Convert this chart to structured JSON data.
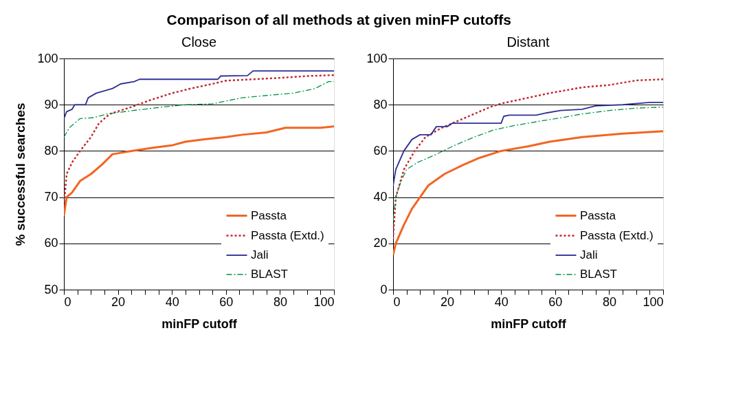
{
  "chart_data": [
    {
      "type": "line",
      "title": "Comparison of all methods at given minFP cutoffs",
      "subtitle": "Close",
      "xlabel": "minFP cutoff",
      "ylabel": "%  successful searches",
      "xlim": [
        0,
        100
      ],
      "ylim": [
        50,
        100
      ],
      "xticks": [
        0,
        {
          "value": 5,
          "label": null
        },
        {
          "value": 10,
          "label": null
        },
        {
          "value": 15,
          "label": null
        },
        20,
        {
          "value": 25,
          "label": null
        },
        {
          "value": 30,
          "label": null
        },
        {
          "value": 35,
          "label": null
        },
        40,
        {
          "value": 45,
          "label": null
        },
        {
          "value": 50,
          "label": null
        },
        {
          "value": 55,
          "label": null
        },
        60,
        {
          "value": 65,
          "label": null
        },
        {
          "value": 70,
          "label": null
        },
        {
          "value": 75,
          "label": null
        },
        80,
        {
          "value": 85,
          "label": null
        },
        {
          "value": 90,
          "label": null
        },
        {
          "value": 95,
          "label": null
        },
        100
      ],
      "yticks": [
        50,
        60,
        70,
        80,
        90,
        100
      ],
      "grid": "y",
      "legend": "bottom right",
      "marker": "none",
      "series": [
        {
          "name": "Passta",
          "color": "#f26522",
          "line_style": "solid",
          "x": [
            0,
            1,
            3,
            6,
            10,
            14,
            18,
            25,
            33,
            40,
            45,
            52,
            60,
            66,
            75,
            82,
            95,
            100
          ],
          "values": [
            66,
            70,
            71,
            73.5,
            75,
            77,
            79.3,
            80,
            80.7,
            81.2,
            82,
            82.5,
            83,
            83.5,
            84,
            85,
            85,
            85.3
          ]
        },
        {
          "name": "Passta (Extd.)",
          "color": "#c0272d",
          "line_style": "dotted",
          "x": [
            0,
            1,
            3,
            6,
            10,
            13,
            17,
            25,
            32,
            40,
            47,
            55,
            60,
            70,
            80,
            90,
            100
          ],
          "values": [
            68,
            75,
            77.5,
            80,
            83,
            86,
            88,
            89.5,
            91,
            92.5,
            93.5,
            94.5,
            95.2,
            95.5,
            95.8,
            96.2,
            96.4
          ]
        },
        {
          "name": "Jali",
          "color": "#2e3192",
          "line_style": "solid",
          "x": [
            0,
            1,
            3,
            4,
            8,
            9,
            12,
            18,
            21,
            26,
            28,
            57,
            58,
            68,
            70,
            100
          ],
          "values": [
            87,
            88.5,
            89,
            90,
            90,
            91.5,
            92.5,
            93.5,
            94.5,
            95,
            95.5,
            95.5,
            96.2,
            96.3,
            97.3,
            97.3
          ]
        },
        {
          "name": "BLAST",
          "color": "#009444",
          "line_style": "dashed",
          "x": [
            0,
            2,
            6,
            11,
            16,
            25,
            35,
            45,
            55,
            60,
            66,
            75,
            85,
            93,
            98,
            100
          ],
          "values": [
            83,
            85,
            87,
            87.2,
            88,
            88.7,
            89.4,
            90,
            90.2,
            90.8,
            91.5,
            92,
            92.5,
            93.5,
            95,
            95
          ]
        }
      ]
    },
    {
      "type": "line",
      "subtitle": "Distant",
      "xlabel": "minFP cutoff",
      "xlim": [
        0,
        100
      ],
      "ylim": [
        0,
        100
      ],
      "xticks": [
        0,
        {
          "value": 5,
          "label": null
        },
        {
          "value": 10,
          "label": null
        },
        {
          "value": 15,
          "label": null
        },
        20,
        {
          "value": 25,
          "label": null
        },
        {
          "value": 30,
          "label": null
        },
        {
          "value": 35,
          "label": null
        },
        40,
        {
          "value": 45,
          "label": null
        },
        {
          "value": 50,
          "label": null
        },
        {
          "value": 55,
          "label": null
        },
        60,
        {
          "value": 65,
          "label": null
        },
        {
          "value": 70,
          "label": null
        },
        {
          "value": 75,
          "label": null
        },
        80,
        {
          "value": 85,
          "label": null
        },
        {
          "value": 90,
          "label": null
        },
        {
          "value": 95,
          "label": null
        },
        100
      ],
      "yticks": [
        0,
        20,
        40,
        60,
        80,
        100
      ],
      "grid": "y",
      "legend": "bottom right",
      "marker": "none",
      "series": [
        {
          "name": "Passta",
          "color": "#f26522",
          "line_style": "solid",
          "x": [
            0,
            1,
            4,
            7,
            10,
            13,
            19,
            26,
            32,
            40,
            50,
            58,
            70,
            85,
            100
          ],
          "values": [
            15,
            20,
            28,
            35,
            40,
            45,
            50,
            54,
            57,
            60,
            62,
            64,
            66,
            67.5,
            68.5
          ]
        },
        {
          "name": "Passta (Extd.)",
          "color": "#c0272d",
          "line_style": "dotted",
          "x": [
            0,
            1,
            4,
            8,
            12,
            18,
            28,
            36,
            40,
            50,
            58,
            70,
            80,
            90,
            100
          ],
          "values": [
            22,
            40,
            52,
            60,
            66,
            70,
            75,
            79,
            80.5,
            83,
            85,
            87.5,
            88.5,
            90.5,
            91
          ]
        },
        {
          "name": "Jali",
          "color": "#2e3192",
          "line_style": "solid",
          "x": [
            0,
            1,
            4,
            7,
            10,
            14,
            16,
            20,
            22,
            40,
            41,
            43,
            53,
            57,
            62,
            70,
            75,
            85,
            95,
            100
          ],
          "values": [
            45,
            52,
            60,
            65,
            67,
            67,
            70.5,
            70.5,
            72,
            72,
            75,
            75.5,
            75.5,
            76.5,
            77.5,
            78,
            79.5,
            80,
            81,
            81
          ]
        },
        {
          "name": "BLAST",
          "color": "#009444",
          "line_style": "dashed",
          "x": [
            0,
            1,
            3,
            5,
            9,
            15,
            22,
            30,
            37,
            45,
            55,
            63,
            70,
            80,
            90,
            100
          ],
          "values": [
            30,
            40,
            47,
            52,
            55,
            58,
            62,
            66,
            69,
            71,
            73,
            74.5,
            76,
            77.5,
            78.5,
            79
          ]
        }
      ]
    }
  ]
}
